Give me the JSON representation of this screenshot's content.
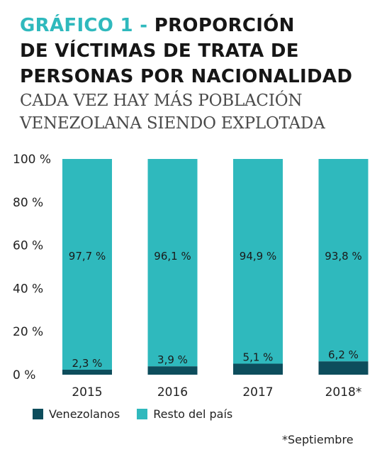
{
  "title": {
    "prefix": "GRÁFICO 1 -",
    "line1_rest": "PROPORCIÓN",
    "line2": "DE VÍCTIMAS DE TRATA DE",
    "line3": "PERSONAS POR NACIONALIDAD"
  },
  "subtitle": {
    "line1": "CADA VEZ HAY MÁS POBLACIÓN",
    "line2": "VENEZOLANA SIENDO EXPLOTADA"
  },
  "colors": {
    "venezolanos": "#0d4d5c",
    "resto": "#2fb9bd",
    "title_accent": "#2fb9bd"
  },
  "chart_data": {
    "type": "bar",
    "stacked": true,
    "categories": [
      "2015",
      "2016",
      "2017",
      "2018*"
    ],
    "series": [
      {
        "name": "Venezolanos",
        "values": [
          2.3,
          3.9,
          5.1,
          6.2
        ],
        "labels": [
          "2,3 %",
          "3,9 %",
          "5,1 %",
          "6,2 %"
        ]
      },
      {
        "name": "Resto del país",
        "values": [
          97.7,
          96.1,
          94.9,
          93.8
        ],
        "labels": [
          "97,7 %",
          "96,1 %",
          "94,9 %",
          "93,8 %"
        ]
      }
    ],
    "yticks": [
      0,
      20,
      40,
      60,
      80,
      100
    ],
    "ytick_labels": [
      "0 %",
      "20 %",
      "40 %",
      "60 %",
      "80 %",
      "100 %"
    ],
    "ylim": [
      0,
      100
    ],
    "legend_position": "bottom-left"
  },
  "footnote": "*Septiembre"
}
